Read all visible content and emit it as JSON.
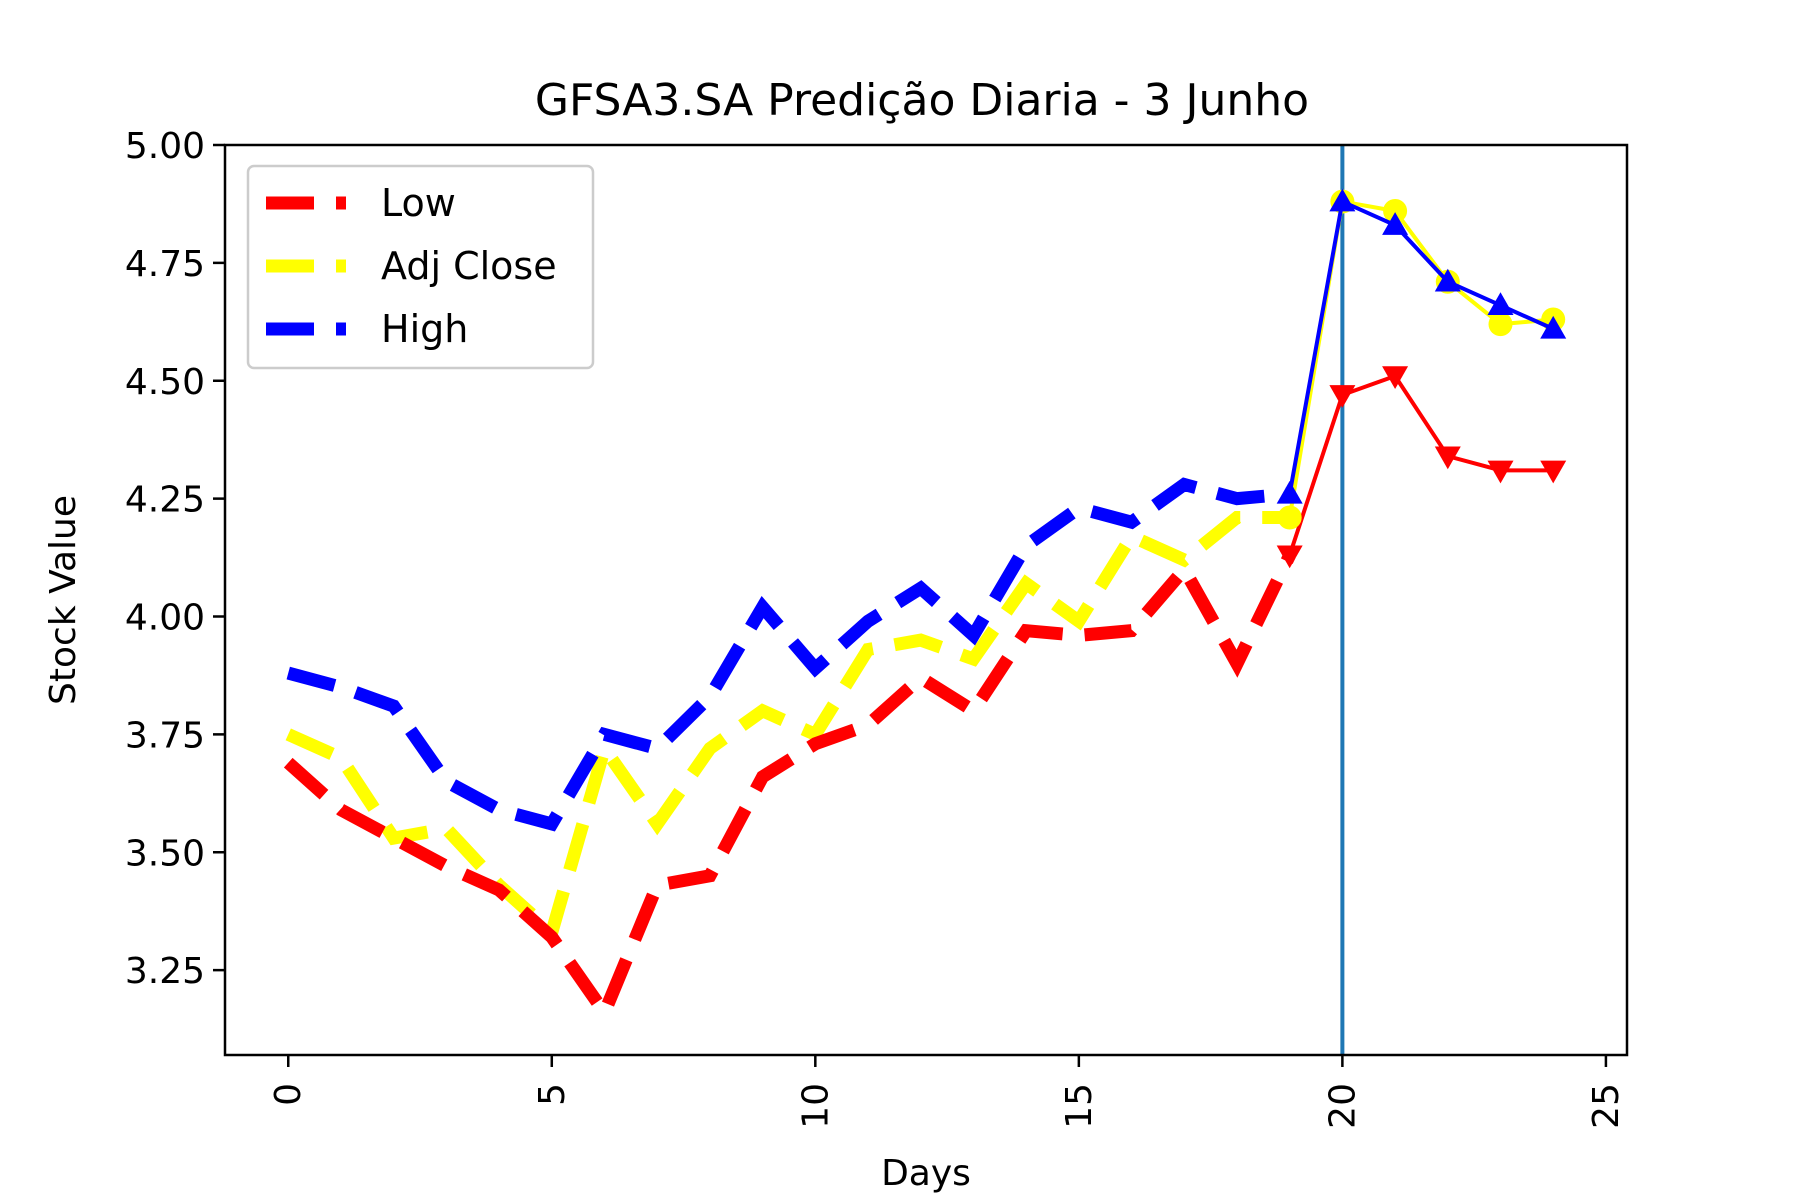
{
  "chart_data": {
    "type": "line",
    "title": "GFSA3.SA Predição Diaria - 3 Junho",
    "xlabel": "Days",
    "ylabel": "Stock Value",
    "xlim": [
      -1.2,
      25.4
    ],
    "ylim": [
      3.07,
      5.0
    ],
    "xticks": [
      0,
      5,
      10,
      15,
      20,
      25
    ],
    "yticks": [
      3.25,
      3.5,
      3.75,
      4.0,
      4.25,
      4.5,
      4.75,
      5.0
    ],
    "ytick_labels": [
      "3.25",
      "3.50",
      "3.75",
      "4.00",
      "4.25",
      "4.50",
      "4.75",
      "5.00"
    ],
    "xtick_labels": [
      "0",
      "5",
      "10",
      "15",
      "20",
      "25"
    ],
    "vline_x": 20,
    "vline_color": "#1f77b4",
    "legend_position": "upper-left",
    "series": [
      {
        "name": "Low",
        "color": "#ff0000",
        "historical_x": [
          0,
          1,
          2,
          3,
          4,
          5,
          6,
          7,
          8,
          9,
          10,
          11,
          12,
          13,
          14,
          15,
          16,
          17,
          18,
          19
        ],
        "historical_y": [
          3.69,
          3.59,
          3.53,
          3.47,
          3.42,
          3.32,
          3.16,
          3.43,
          3.45,
          3.66,
          3.73,
          3.77,
          3.87,
          3.8,
          3.97,
          3.96,
          3.97,
          4.1,
          3.9,
          4.13
        ],
        "predicted_x": [
          19,
          20,
          21,
          22,
          23,
          24
        ],
        "predicted_y": [
          4.13,
          4.47,
          4.51,
          4.34,
          4.31,
          4.31
        ],
        "marker": "triangle-down"
      },
      {
        "name": "Adj Close",
        "color": "#ffff00",
        "historical_x": [
          0,
          1,
          2,
          3,
          4,
          5,
          6,
          7,
          8,
          9,
          10,
          11,
          12,
          13,
          14,
          15,
          16,
          17,
          18,
          19
        ],
        "historical_y": [
          3.75,
          3.7,
          3.53,
          3.55,
          3.43,
          3.33,
          3.72,
          3.56,
          3.72,
          3.8,
          3.75,
          3.93,
          3.95,
          3.91,
          4.07,
          3.99,
          4.17,
          4.12,
          4.21,
          4.21
        ],
        "predicted_x": [
          19,
          20,
          21,
          22,
          23,
          24
        ],
        "predicted_y": [
          4.21,
          4.88,
          4.86,
          4.71,
          4.62,
          4.63
        ],
        "marker": "circle"
      },
      {
        "name": "High",
        "color": "#0000ff",
        "historical_x": [
          0,
          1,
          2,
          3,
          4,
          5,
          6,
          7,
          8,
          9,
          10,
          11,
          12,
          13,
          14,
          15,
          16,
          17,
          18,
          19
        ],
        "historical_y": [
          3.88,
          3.85,
          3.81,
          3.65,
          3.59,
          3.56,
          3.75,
          3.72,
          3.83,
          4.02,
          3.89,
          3.99,
          4.06,
          3.96,
          4.15,
          4.23,
          4.2,
          4.28,
          4.25,
          4.26
        ],
        "predicted_x": [
          19,
          20,
          21,
          22,
          23,
          24
        ],
        "predicted_y": [
          4.26,
          4.88,
          4.83,
          4.71,
          4.66,
          4.61
        ],
        "marker": "triangle-up"
      }
    ]
  }
}
